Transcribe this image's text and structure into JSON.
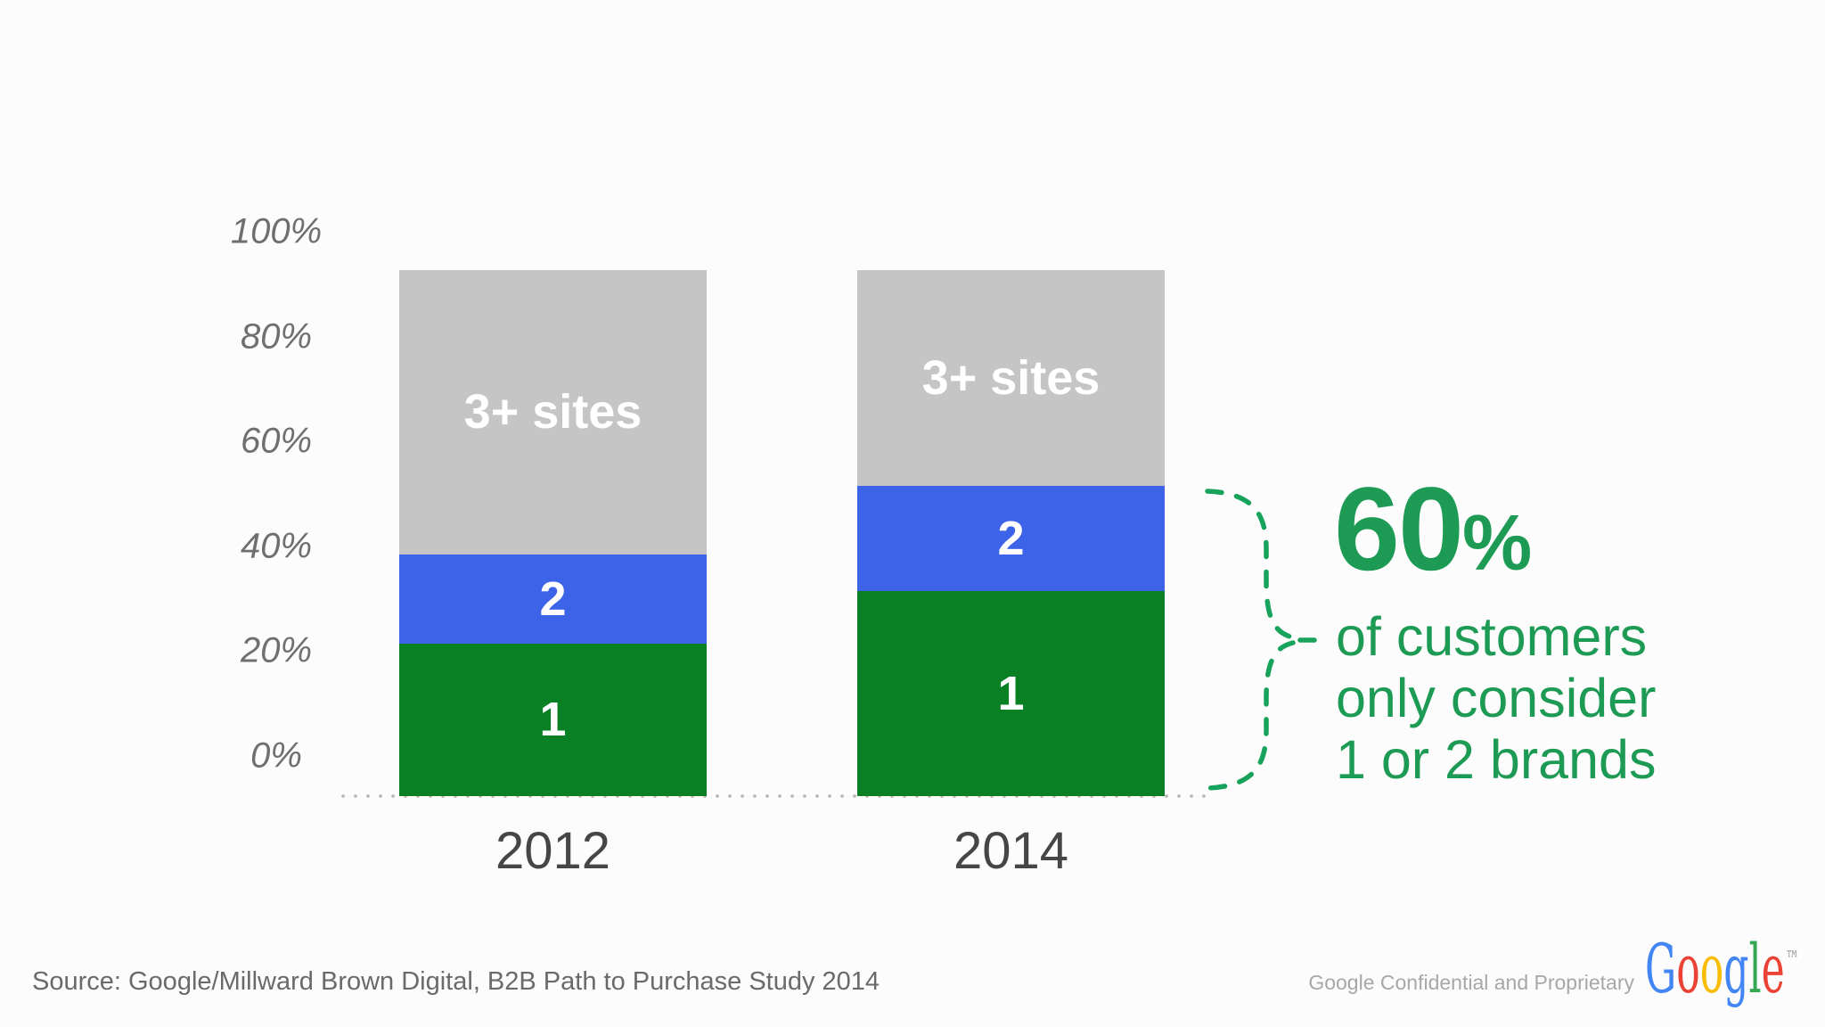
{
  "chart_data": {
    "type": "bar",
    "stacked": true,
    "categories": [
      "2012",
      "2014"
    ],
    "series": [
      {
        "name": "1",
        "values": [
          29,
          39
        ],
        "color": "#0a8024"
      },
      {
        "name": "2",
        "values": [
          17,
          20
        ],
        "color": "#3c63e8"
      },
      {
        "name": "3+ sites",
        "values": [
          54,
          41
        ],
        "color": "#c5c5c5"
      }
    ],
    "y_ticks": [
      "100%",
      "80%",
      "60%",
      "40%",
      "20%",
      "0%"
    ],
    "ylim": [
      0,
      100
    ],
    "legend_position": "labels-inside-segments",
    "grid": false
  },
  "callout": {
    "value": "60",
    "percent_sign": "%",
    "lines": [
      "of customers",
      "only consider",
      "1 or 2 brands"
    ],
    "text_color": "#1d9b55",
    "brace_color": "#17a35b"
  },
  "footer": {
    "source": "Source: Google/Millward Brown Digital, B2B Path to Purchase Study 2014",
    "confidential": "Google Confidential and Proprietary",
    "logo": {
      "letters": [
        {
          "ch": "G",
          "color": "#4285f4"
        },
        {
          "ch": "o",
          "color": "#ea4335"
        },
        {
          "ch": "o",
          "color": "#fbbc05"
        },
        {
          "ch": "g",
          "color": "#4285f4"
        },
        {
          "ch": "l",
          "color": "#34a853"
        },
        {
          "ch": "e",
          "color": "#ea4335"
        }
      ],
      "trademark": "™"
    }
  }
}
